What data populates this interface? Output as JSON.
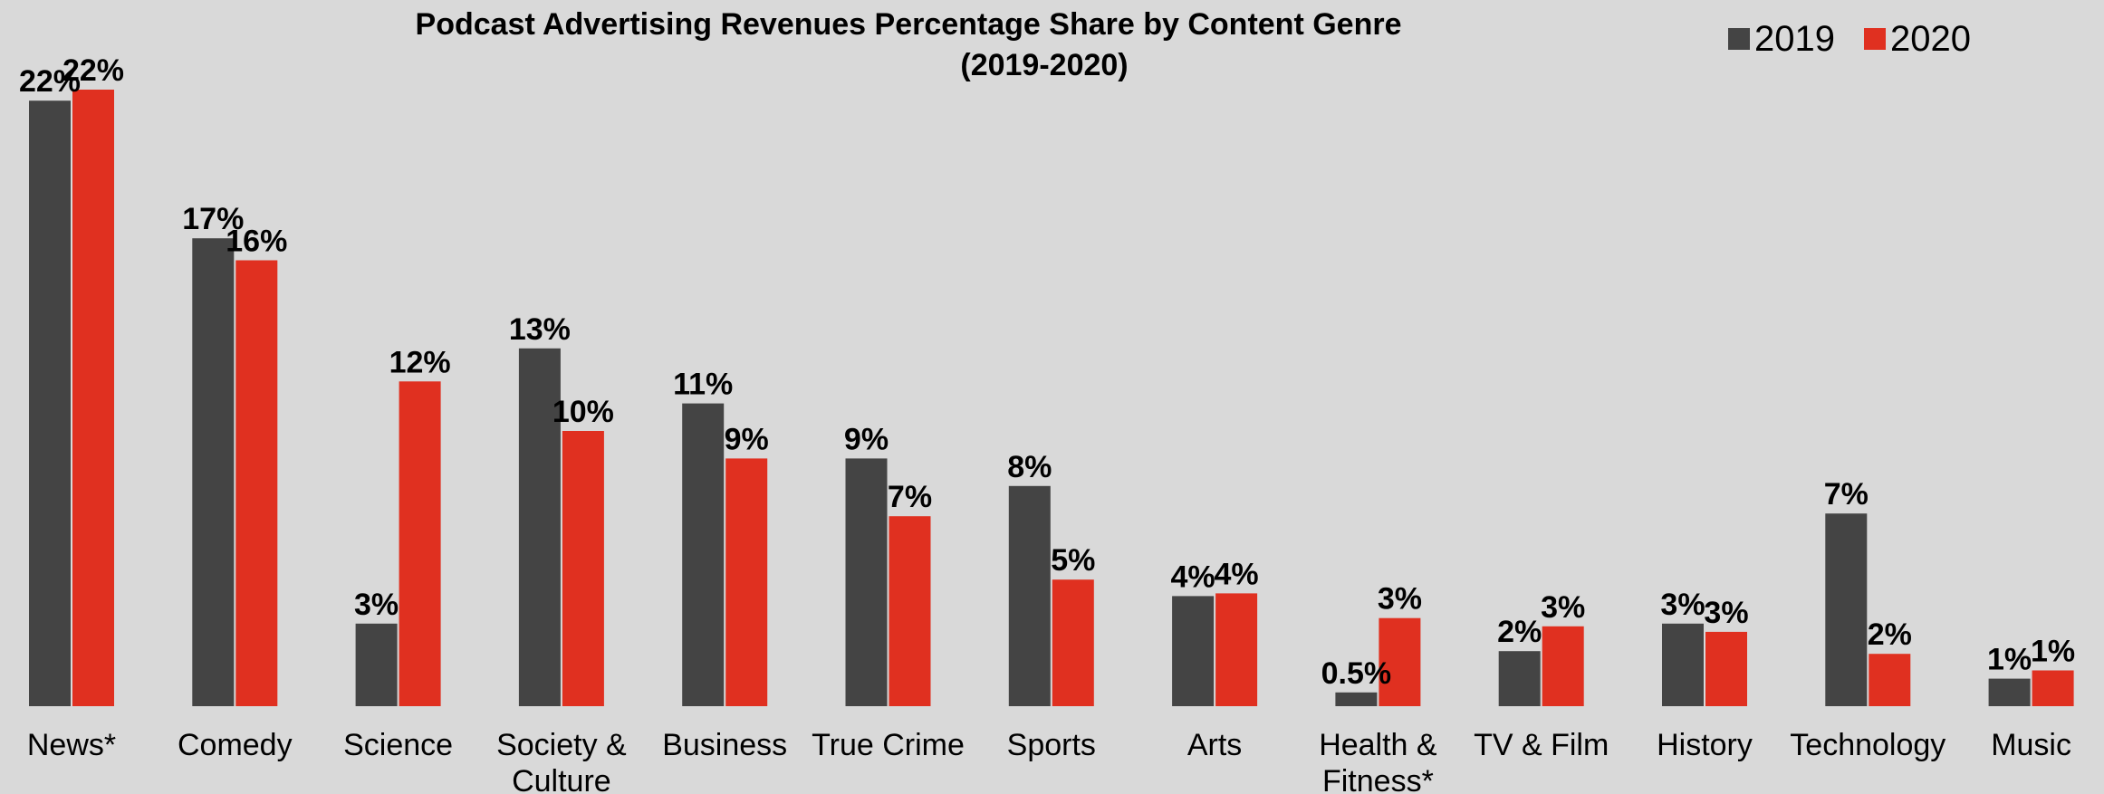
{
  "chart_data": {
    "type": "bar",
    "title": "Podcast Advertising Revenues Percentage Share by Content Genre",
    "subtitle": "(2019-2020)",
    "categories": [
      [
        "News*"
      ],
      [
        "Comedy"
      ],
      [
        "Science"
      ],
      [
        "Society &",
        "Culture"
      ],
      [
        "Business"
      ],
      [
        "True Crime"
      ],
      [
        "Sports"
      ],
      [
        "Arts"
      ],
      [
        "Health &",
        "Fitness*"
      ],
      [
        "TV & Film"
      ],
      [
        "History"
      ],
      [
        "Technology"
      ],
      [
        "Music"
      ]
    ],
    "series": [
      {
        "name": "2019",
        "color": "#444444",
        "values": [
          22,
          17,
          3,
          13,
          11,
          9,
          8,
          4,
          0.5,
          2,
          3,
          7,
          1
        ],
        "labels": [
          "22%",
          "17%",
          "3%",
          "13%",
          "11%",
          "9%",
          "8%",
          "4%",
          "0.5%",
          "2%",
          "3%",
          "7%",
          "1%"
        ]
      },
      {
        "name": "2020",
        "color": "#e03020",
        "values": [
          22.4,
          16.2,
          11.8,
          10.0,
          9.0,
          6.9,
          4.6,
          4.1,
          3.2,
          2.9,
          2.7,
          1.9,
          1.3
        ],
        "labels": [
          "22%",
          "16%",
          "12%",
          "10%",
          "9%",
          "7%",
          "5%",
          "4%",
          "3%",
          "3%",
          "3%",
          "2%",
          "1%"
        ]
      }
    ],
    "ylim": [
      0,
      23
    ],
    "grid": false,
    "legend_position": "top-right"
  }
}
